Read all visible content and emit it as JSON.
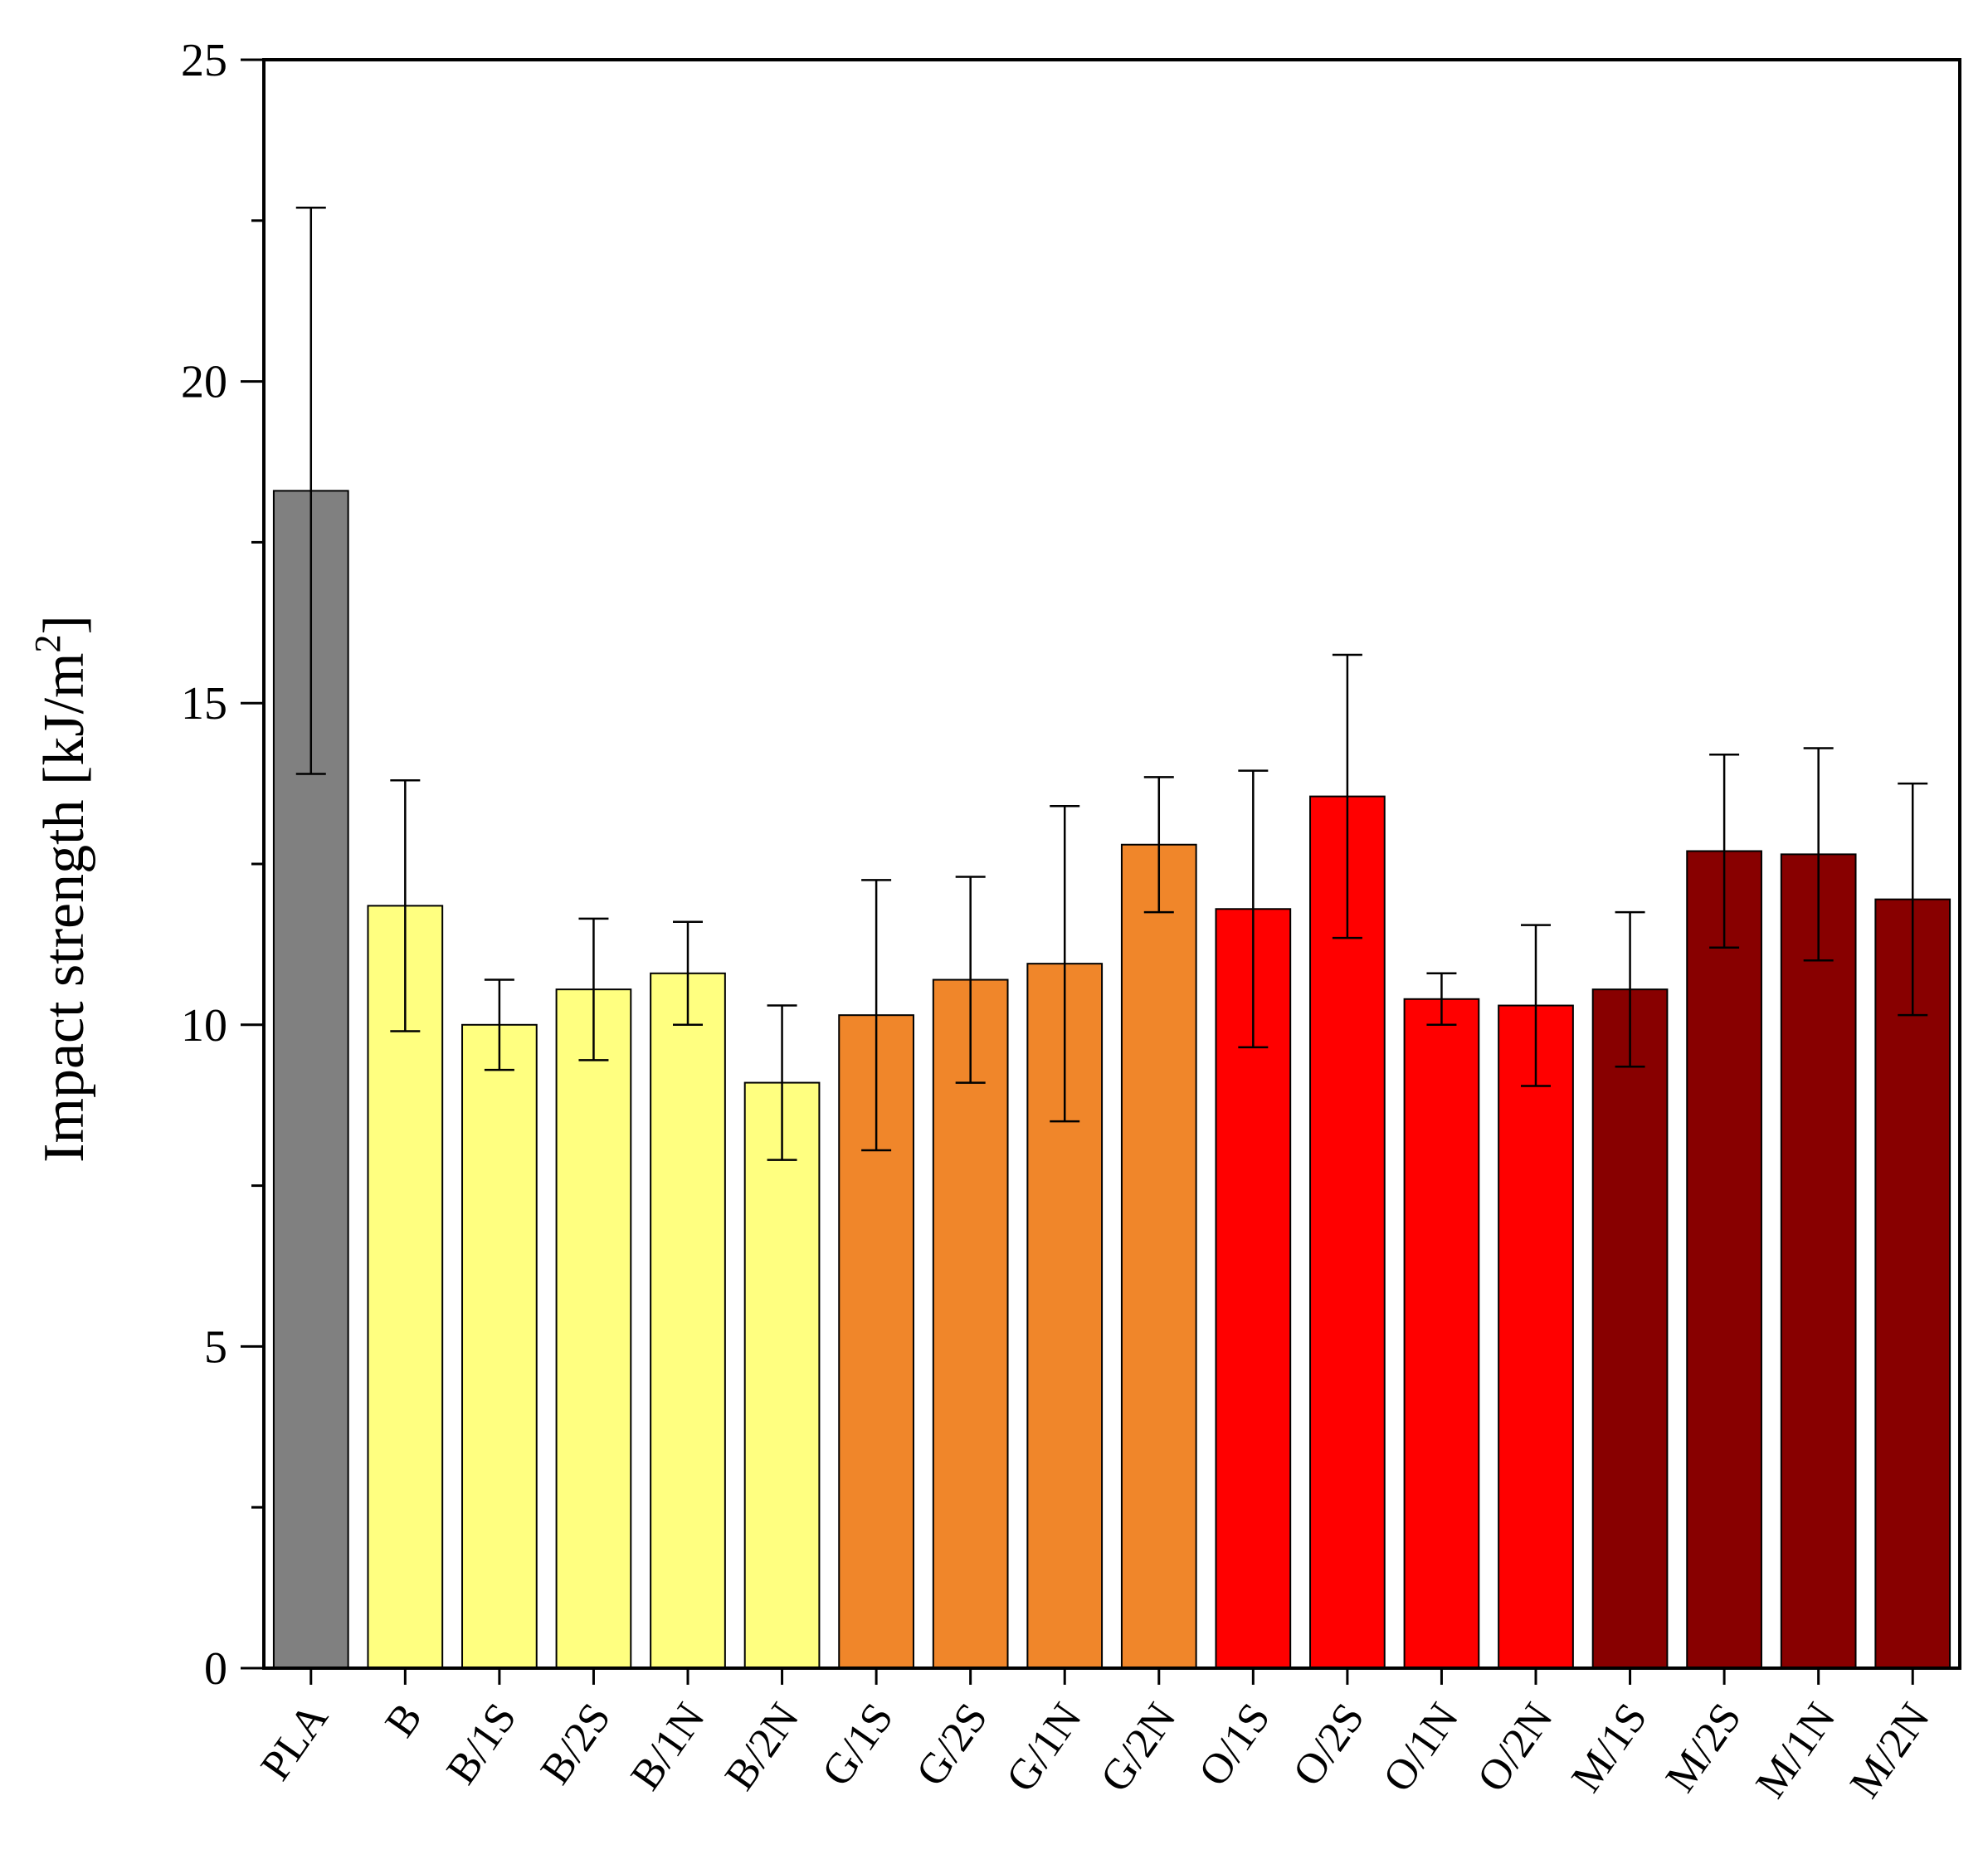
{
  "chart_data": {
    "type": "bar",
    "title": "",
    "xlabel": "",
    "ylabel": "Impact strength [kJ/m",
    "ylabel_superscript": "2",
    "ylabel_suffix": "]",
    "ylim": [
      0,
      25
    ],
    "yticks": [
      0,
      5,
      10,
      15,
      20,
      25
    ],
    "yminor_step": 2.5,
    "grid": false,
    "categories": [
      "PLA",
      "B",
      "B/1S",
      "B/2S",
      "B/1N",
      "B/2N",
      "G/1S",
      "G/2S",
      "G/1N",
      "G/2N",
      "O/1S",
      "O/2S",
      "O/1N",
      "O/2N",
      "M/1S",
      "M/2S",
      "M/1N",
      "M/2N"
    ],
    "values": [
      18.3,
      11.85,
      10.0,
      10.55,
      10.8,
      9.1,
      10.15,
      10.7,
      10.95,
      12.8,
      11.8,
      13.55,
      10.4,
      10.3,
      10.55,
      12.7,
      12.65,
      11.95
    ],
    "errors": [
      4.4,
      1.95,
      0.7,
      1.1,
      0.8,
      1.2,
      2.1,
      1.6,
      2.45,
      1.05,
      2.15,
      2.2,
      0.4,
      1.25,
      1.2,
      1.5,
      1.65,
      1.8
    ],
    "colors": [
      "#808080",
      "#ffff80",
      "#ffff80",
      "#ffff80",
      "#ffff80",
      "#ffff80",
      "#f0862a",
      "#f0862a",
      "#f0862a",
      "#f0862a",
      "#ff0000",
      "#ff0000",
      "#ff0000",
      "#ff0000",
      "#880000",
      "#880000",
      "#880000",
      "#880000"
    ]
  }
}
